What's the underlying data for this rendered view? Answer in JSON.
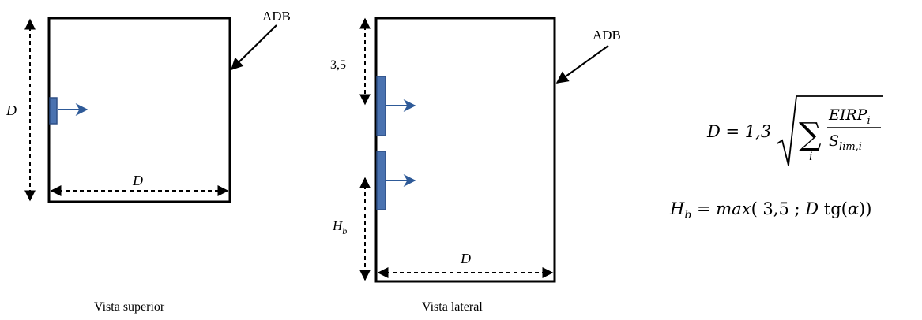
{
  "top_view": {
    "adb_label": "ADB",
    "d_side": "D",
    "d_bottom": "D",
    "caption": "Vista superior"
  },
  "side_view": {
    "adb_label": "ADB",
    "height_label": "3,5",
    "hb_main": "H",
    "hb_sub": "b",
    "d_bottom": "D",
    "caption": "Vista lateral"
  },
  "formula_d": {
    "lhs": "D = 1,3",
    "sum_index": "i",
    "num_main": "EIRP",
    "num_sub": "i",
    "den_main": "S",
    "den_sub": "lim,i"
  },
  "formula_h": {
    "h_main": "H",
    "h_sub": "b",
    "eq": "=",
    "func": "max",
    "args_a": "( 3,5  ;  ",
    "args_d": "D",
    "args_tg": " tg(",
    "args_alpha": "α",
    "args_close": "))"
  },
  "colors": {
    "antenna": "#4a72b0",
    "antenna_border": "#2e4f86",
    "arrow": "#2e5a98"
  }
}
